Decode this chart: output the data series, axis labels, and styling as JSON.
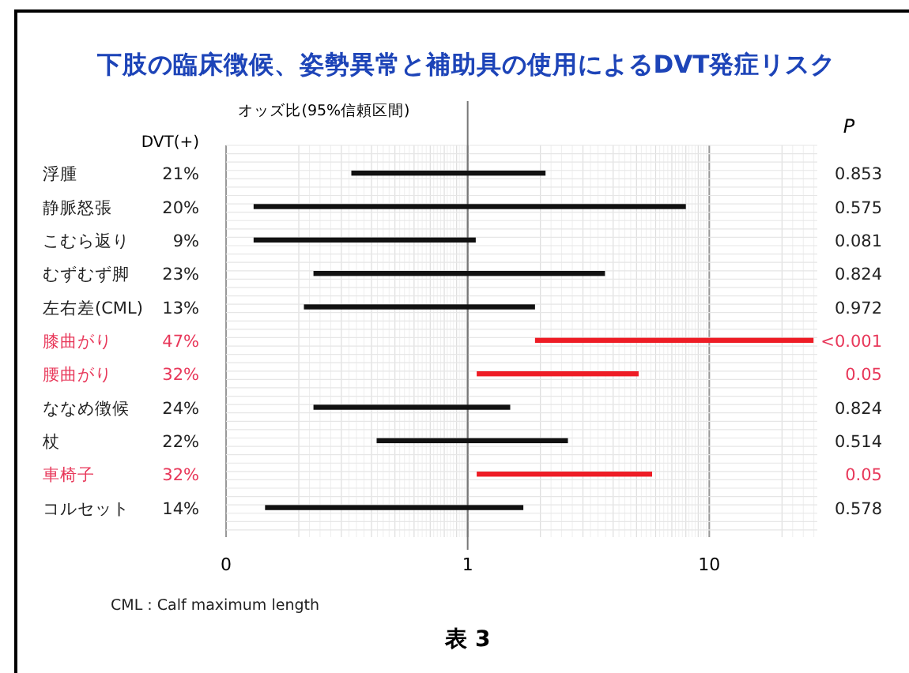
{
  "chart_data": {
    "type": "bar",
    "orientation": "horizontal",
    "log": "x",
    "title": "下肢の臨床徴候、姿勢異常と補助具の使用によるDVT発症リスク",
    "xlabel": "オッズ比(95%信頼区間)",
    "ylabel": "DVT(+)",
    "y2label": "P",
    "categories": [
      "浮腫",
      "静脈怒張",
      "こむら返り",
      "むずむず脚",
      "左右差(CML)",
      "膝曲がり",
      "腰曲がり",
      "ななめ徴候",
      "杖",
      "車椅子",
      "コルセット"
    ],
    "base": [
      0.33,
      0.13,
      0.13,
      0.23,
      0.21,
      1.9,
      1.09,
      0.23,
      0.42,
      1.09,
      0.145
    ],
    "values": [
      1.77,
      7.87,
      0.95,
      3.47,
      1.69,
      25.1,
      4.01,
      1.27,
      2.18,
      4.71,
      1.555
    ],
    "colors": [
      "#111111",
      "#111111",
      "#111111",
      "#111111",
      "#111111",
      "#ee1c25",
      "#ee1c25",
      "#111111",
      "#111111",
      "#ee1c25",
      "#111111"
    ],
    "xlim": [
      0.1,
      28
    ],
    "xticks": [
      {
        "value": 0.1,
        "label": "0"
      },
      1,
      10
    ],
    "grid": true,
    "ref_lines": [
      {
        "axis": "x",
        "value": 1
      }
    ],
    "annotations": [
      "21%",
      "20%",
      "9%",
      "23%",
      "13%",
      "47%",
      "32%",
      "24%",
      "22%",
      "32%",
      "14%",
      "0.853",
      "0.575",
      "0.081",
      "0.824",
      "0.972",
      "<0.001",
      "0.05",
      "0.824",
      "0.514",
      "0.05",
      "0.578",
      "CML : Calf maximum length",
      "表 3"
    ]
  }
}
